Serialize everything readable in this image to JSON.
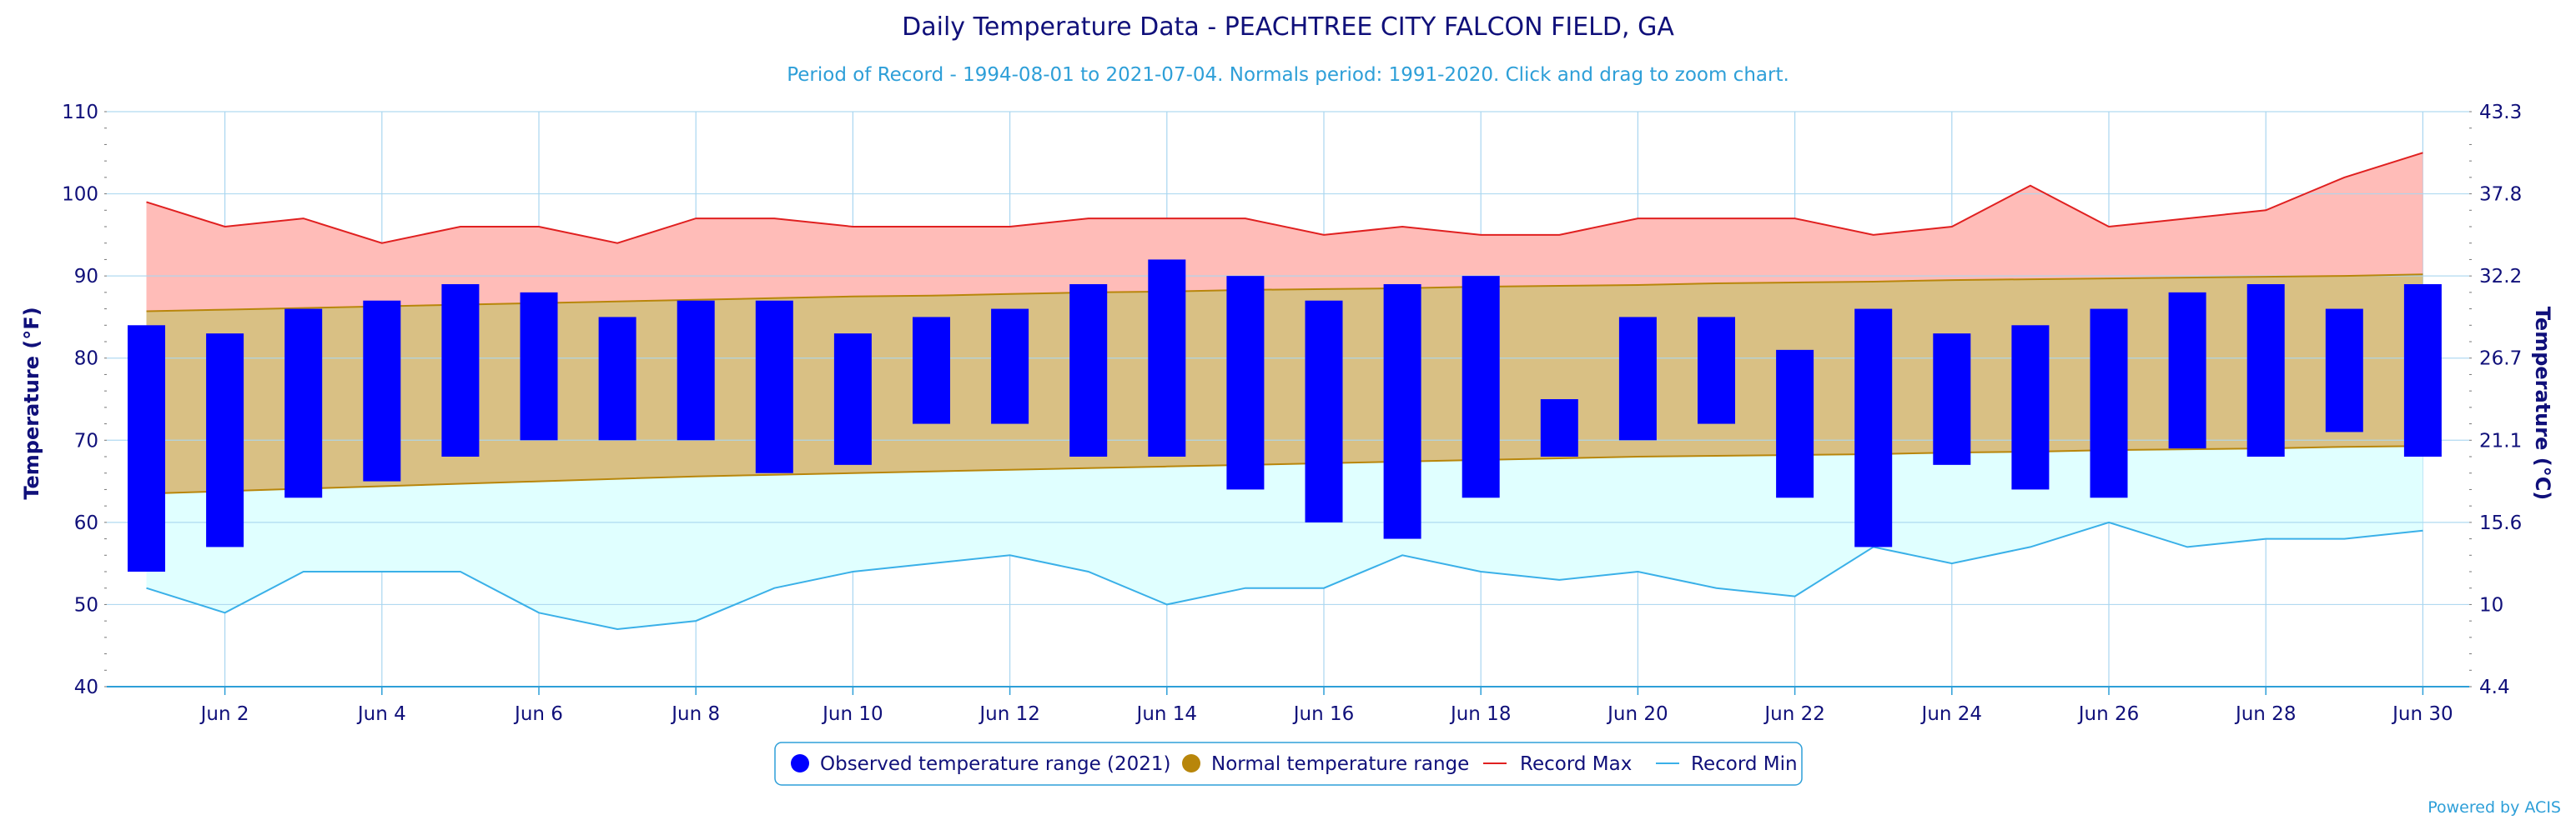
{
  "chart_data": {
    "type": "bar",
    "title": "Daily Temperature Data - PEACHTREE CITY FALCON FIELD, GA",
    "subtitle": "Period of Record - 1994-08-01 to 2021-07-04. Normals period: 1991-2020. Click and drag to zoom chart.",
    "ylabel": "Temperature (°F)",
    "ylabel_right": "Temperature (°C)",
    "ylim": [
      40,
      110
    ],
    "y_ticks": [
      40,
      50,
      60,
      70,
      80,
      90,
      100,
      110
    ],
    "y_ticks_right": [
      "4.4",
      "10",
      "15.6",
      "21.1",
      "26.7",
      "32.2",
      "37.8",
      "43.3"
    ],
    "x_tick_labels": [
      "Jun 2",
      "Jun 4",
      "Jun 6",
      "Jun 8",
      "Jun 10",
      "Jun 12",
      "Jun 14",
      "Jun 16",
      "Jun 18",
      "Jun 20",
      "Jun 22",
      "Jun 24",
      "Jun 26",
      "Jun 28",
      "Jun 30"
    ],
    "x_tick_days": [
      2,
      4,
      6,
      8,
      10,
      12,
      14,
      16,
      18,
      20,
      22,
      24,
      26,
      28,
      30
    ],
    "days": [
      1,
      2,
      3,
      4,
      5,
      6,
      7,
      8,
      9,
      10,
      11,
      12,
      13,
      14,
      15,
      16,
      17,
      18,
      19,
      20,
      21,
      22,
      23,
      24,
      25,
      26,
      27,
      28,
      29,
      30
    ],
    "series": [
      {
        "name": "Observed temperature range (2021)",
        "type": "columnrange",
        "color": "#0000ff",
        "low": [
          54,
          57,
          63,
          65,
          68,
          70,
          70,
          70,
          66,
          67,
          72,
          72,
          68,
          68,
          64,
          60,
          58,
          63,
          68,
          70,
          72,
          63,
          57,
          67,
          64,
          63,
          69,
          68,
          71,
          68
        ],
        "high": [
          84,
          83,
          86,
          87,
          89,
          88,
          85,
          87,
          87,
          83,
          85,
          86,
          89,
          92,
          90,
          87,
          89,
          90,
          75,
          85,
          85,
          81,
          86,
          83,
          84,
          86,
          88,
          89,
          86,
          89
        ]
      },
      {
        "name": "Normal temperature range",
        "type": "arearange",
        "color": "#b8860b",
        "fill": "#d9c084",
        "low": [
          63.5,
          63.8,
          64.1,
          64.4,
          64.7,
          65.0,
          65.3,
          65.6,
          65.8,
          66.0,
          66.2,
          66.4,
          66.6,
          66.8,
          67.0,
          67.2,
          67.4,
          67.6,
          67.8,
          68.0,
          68.1,
          68.2,
          68.3,
          68.5,
          68.6,
          68.8,
          68.9,
          69.0,
          69.2,
          69.3
        ],
        "high": [
          85.7,
          85.9,
          86.1,
          86.3,
          86.5,
          86.7,
          86.9,
          87.1,
          87.3,
          87.5,
          87.6,
          87.8,
          88.0,
          88.1,
          88.3,
          88.4,
          88.5,
          88.7,
          88.8,
          88.9,
          89.1,
          89.2,
          89.3,
          89.5,
          89.6,
          89.7,
          89.8,
          89.9,
          90.0,
          90.2
        ]
      },
      {
        "name": "Record Max",
        "type": "line",
        "color": "#e02020",
        "fill": "#ffbcb8",
        "values": [
          99,
          96,
          97,
          94,
          96,
          96,
          94,
          97,
          97,
          96,
          96,
          96,
          97,
          97,
          97,
          95,
          96,
          95,
          95,
          97,
          97,
          97,
          95,
          96,
          101,
          96,
          97,
          98,
          102,
          105
        ]
      },
      {
        "name": "Record Min",
        "type": "line",
        "color": "#3ab0e8",
        "fill": "#e0ffff",
        "values": [
          52,
          49,
          54,
          54,
          54,
          49,
          47,
          48,
          52,
          54,
          55,
          56,
          54,
          50,
          52,
          52,
          56,
          54,
          53,
          54,
          52,
          51,
          57,
          55,
          57,
          60,
          57,
          58,
          58,
          59
        ]
      }
    ],
    "grid": true,
    "legend_position": "bottom-center"
  },
  "legend": {
    "items": [
      {
        "label": "Observed temperature range (2021)",
        "symbol": "circle",
        "color": "#0000ff"
      },
      {
        "label": "Normal temperature range",
        "symbol": "circle",
        "color": "#b8860b"
      },
      {
        "label": "Record Max",
        "symbol": "line",
        "color": "#e02020"
      },
      {
        "label": "Record Min",
        "symbol": "line",
        "color": "#3ab0e8"
      }
    ]
  },
  "credits": "Powered by ACIS"
}
